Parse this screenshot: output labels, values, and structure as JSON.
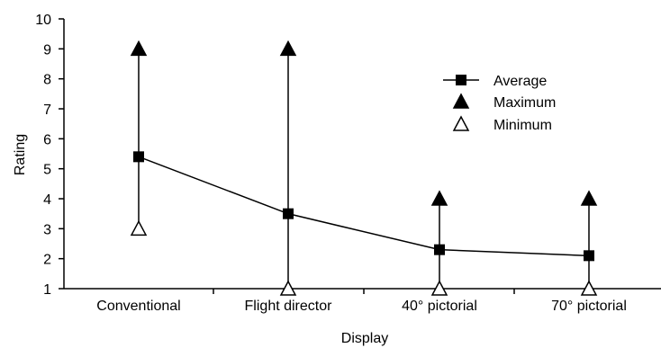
{
  "chart_data": {
    "type": "line",
    "xlabel": "Display",
    "ylabel": "Rating",
    "ylim": [
      1,
      10
    ],
    "yticks": [
      1,
      2,
      3,
      4,
      5,
      6,
      7,
      8,
      9,
      10
    ],
    "categories": [
      "Conventional",
      "Flight director",
      "40° pictorial",
      "70° pictorial"
    ],
    "series": [
      {
        "name": "Average",
        "marker": "filled-square",
        "connected": true,
        "values": [
          5.4,
          3.5,
          2.3,
          2.1
        ]
      },
      {
        "name": "Maximum",
        "marker": "filled-triangle",
        "connected": false,
        "values": [
          9,
          9,
          4,
          4
        ]
      },
      {
        "name": "Minimum",
        "marker": "open-triangle",
        "connected": false,
        "values": [
          3,
          1,
          1,
          1
        ]
      }
    ],
    "range_bars": true,
    "grid": false,
    "legend_position": "top-right"
  }
}
